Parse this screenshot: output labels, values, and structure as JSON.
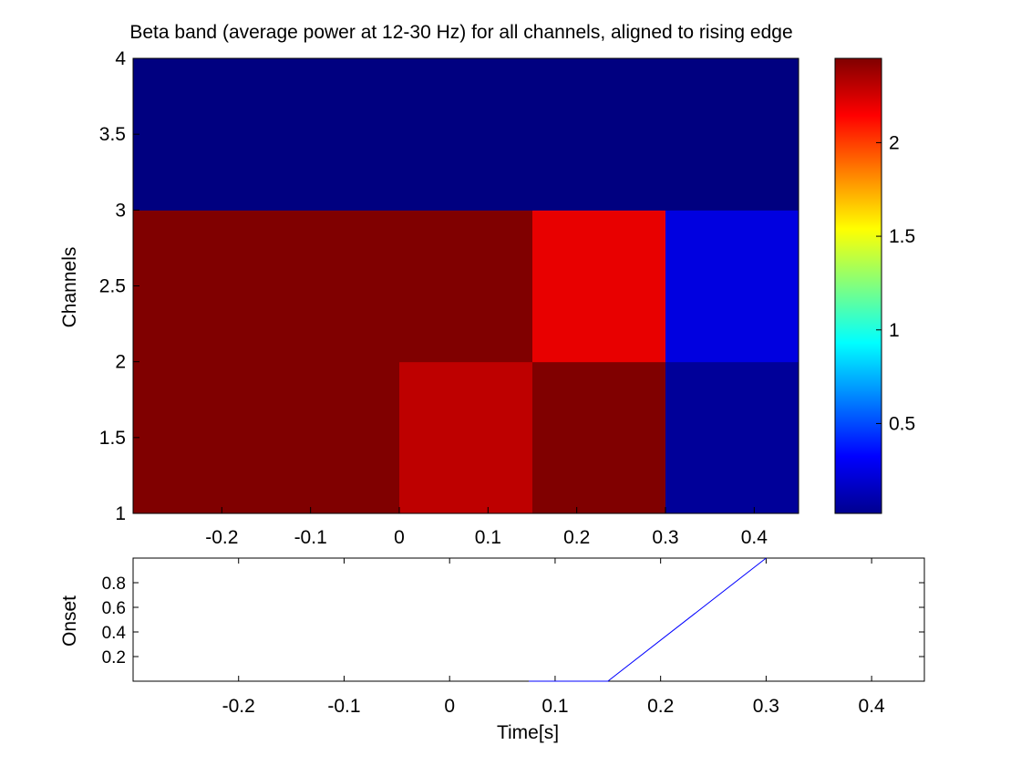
{
  "chart_data": [
    {
      "type": "heatmap",
      "title": "Beta band (average power at 12-30 Hz) for all channels, aligned to rising edge",
      "xlabel": "",
      "ylabel": "Channels",
      "xlim": [
        -0.3,
        0.45
      ],
      "ylim": [
        1,
        4
      ],
      "x_ticks": [
        "-0.2",
        "-0.1",
        "0",
        "0.1",
        "0.2",
        "0.3",
        "0.4"
      ],
      "y_ticks": [
        "1",
        "1.5",
        "2",
        "2.5",
        "3",
        "3.5",
        "4"
      ],
      "x_bin_edges": [
        -0.3,
        -0.15,
        0,
        0.15,
        0.3,
        0.45
      ],
      "y_bin_edges": [
        1,
        2,
        3,
        4
      ],
      "values": [
        [
          2.45,
          2.45,
          2.3,
          2.45,
          0.08
        ],
        [
          2.45,
          2.45,
          2.45,
          2.2,
          0.25
        ],
        [
          0.02,
          0.02,
          0.02,
          0.02,
          0.02
        ]
      ],
      "colormap": "jet",
      "clim": [
        0.02,
        2.45
      ],
      "colorbar_ticks": [
        "0.5",
        "1",
        "1.5",
        "2"
      ],
      "grid": false
    },
    {
      "type": "line",
      "title": "",
      "xlabel": "Time[s]",
      "ylabel": "Onset",
      "xlim": [
        -0.3,
        0.45
      ],
      "ylim": [
        0,
        1
      ],
      "x_ticks": [
        "-0.2",
        "-0.1",
        "0",
        "0.1",
        "0.2",
        "0.3",
        "0.4"
      ],
      "y_ticks": [
        "0.2",
        "0.4",
        "0.6",
        "0.8"
      ],
      "x": [
        0.075,
        0.15,
        0.3
      ],
      "y": [
        0,
        0,
        1
      ],
      "line_color": "#0000ff",
      "grid": false
    }
  ]
}
